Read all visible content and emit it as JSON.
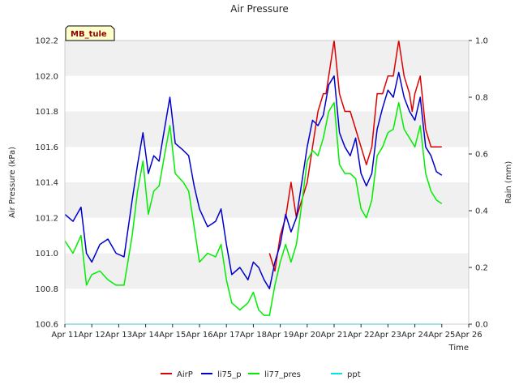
{
  "chart_data": {
    "type": "line",
    "title": "Air Pressure",
    "site_label": "MB_tule",
    "xlabel": "Time",
    "ylabel": "Air Pressure (kPa)",
    "y2label": "Rain (mm)",
    "x_ticks": [
      "Apr 11",
      "Apr 12",
      "Apr 13",
      "Apr 14",
      "Apr 15",
      "Apr 16",
      "Apr 17",
      "Apr 18",
      "Apr 19",
      "Apr 20",
      "Apr 21",
      "Apr 22",
      "Apr 23",
      "Apr 24",
      "Apr 25",
      "Apr 26"
    ],
    "xlim": [
      0,
      15
    ],
    "ylim": [
      100.6,
      102.2
    ],
    "y_ticks": [
      "100.6",
      "100.8",
      "101.0",
      "101.2",
      "101.4",
      "101.6",
      "101.8",
      "102.0",
      "102.2"
    ],
    "y2lim": [
      0.0,
      1.0
    ],
    "y2_ticks": [
      "0.0",
      "0.2",
      "0.4",
      "0.6",
      "0.8",
      "1.0"
    ],
    "grid": "horizontal bands",
    "legend_position": "bottom-center",
    "colors": {
      "AirP": "#dd0000",
      "li75_p": "#0000cc",
      "li77_pres": "#00ee00",
      "ppt": "#00e5e5",
      "band": "#f0f0f0"
    },
    "series": [
      {
        "name": "AirP",
        "axis": "left",
        "x": [
          7.6,
          7.8,
          8.0,
          8.2,
          8.4,
          8.6,
          8.8,
          9.0,
          9.2,
          9.4,
          9.6,
          9.7,
          9.8,
          10.0,
          10.2,
          10.4,
          10.6,
          10.8,
          11.0,
          11.2,
          11.4,
          11.6,
          11.8,
          12.0,
          12.2,
          12.4,
          12.6,
          12.8,
          12.9,
          13.0,
          13.2,
          13.4,
          13.6,
          13.8,
          14.0
        ],
        "y": [
          101.0,
          100.9,
          101.1,
          101.2,
          101.4,
          101.2,
          101.3,
          101.4,
          101.6,
          101.8,
          101.9,
          101.9,
          102.0,
          102.2,
          101.9,
          101.8,
          101.8,
          101.7,
          101.6,
          101.5,
          101.6,
          101.9,
          101.9,
          102.0,
          102.0,
          102.2,
          102.0,
          101.9,
          101.8,
          101.9,
          102.0,
          101.7,
          101.6,
          101.6,
          101.6
        ]
      },
      {
        "name": "li75_p",
        "axis": "left",
        "x": [
          0,
          0.3,
          0.6,
          0.8,
          1.0,
          1.3,
          1.6,
          1.9,
          2.2,
          2.5,
          2.7,
          2.9,
          3.1,
          3.3,
          3.5,
          3.7,
          3.9,
          4.1,
          4.4,
          4.6,
          4.8,
          5.0,
          5.3,
          5.6,
          5.8,
          6.0,
          6.2,
          6.5,
          6.8,
          7.0,
          7.2,
          7.4,
          7.6,
          7.8,
          8.0,
          8.2,
          8.4,
          8.6,
          8.8,
          9.0,
          9.2,
          9.4,
          9.6,
          9.8,
          10.0,
          10.2,
          10.4,
          10.6,
          10.8,
          11.0,
          11.2,
          11.4,
          11.6,
          11.8,
          12.0,
          12.2,
          12.4,
          12.6,
          12.8,
          13.0,
          13.2,
          13.4,
          13.6,
          13.8,
          14.0
        ],
        "y": [
          101.22,
          101.18,
          101.26,
          101.0,
          100.95,
          101.05,
          101.08,
          101.0,
          100.98,
          101.3,
          101.5,
          101.68,
          101.45,
          101.55,
          101.52,
          101.7,
          101.88,
          101.62,
          101.58,
          101.55,
          101.38,
          101.25,
          101.15,
          101.18,
          101.25,
          101.05,
          100.88,
          100.92,
          100.85,
          100.95,
          100.92,
          100.85,
          100.8,
          100.95,
          101.05,
          101.22,
          101.12,
          101.2,
          101.4,
          101.6,
          101.75,
          101.72,
          101.78,
          101.95,
          102.0,
          101.68,
          101.6,
          101.55,
          101.65,
          101.45,
          101.38,
          101.45,
          101.7,
          101.82,
          101.92,
          101.88,
          102.02,
          101.88,
          101.8,
          101.75,
          101.88,
          101.6,
          101.55,
          101.46,
          101.44
        ]
      },
      {
        "name": "li77_pres",
        "axis": "left",
        "x": [
          0,
          0.3,
          0.6,
          0.8,
          1.0,
          1.3,
          1.6,
          1.9,
          2.2,
          2.5,
          2.7,
          2.9,
          3.1,
          3.3,
          3.5,
          3.7,
          3.9,
          4.1,
          4.4,
          4.6,
          4.8,
          5.0,
          5.3,
          5.6,
          5.8,
          6.0,
          6.2,
          6.5,
          6.8,
          7.0,
          7.2,
          7.4,
          7.6,
          7.8,
          8.0,
          8.2,
          8.4,
          8.6,
          8.8,
          9.0,
          9.2,
          9.4,
          9.6,
          9.8,
          10.0,
          10.2,
          10.4,
          10.6,
          10.8,
          11.0,
          11.2,
          11.4,
          11.6,
          11.8,
          12.0,
          12.2,
          12.4,
          12.6,
          12.8,
          13.0,
          13.2,
          13.4,
          13.6,
          13.8,
          14.0
        ],
        "y": [
          101.07,
          101.0,
          101.1,
          100.82,
          100.88,
          100.9,
          100.85,
          100.82,
          100.82,
          101.1,
          101.35,
          101.52,
          101.22,
          101.35,
          101.38,
          101.55,
          101.72,
          101.45,
          101.4,
          101.35,
          101.15,
          100.95,
          101.0,
          100.98,
          101.05,
          100.85,
          100.72,
          100.68,
          100.72,
          100.78,
          100.68,
          100.65,
          100.65,
          100.82,
          100.95,
          101.05,
          100.95,
          101.05,
          101.28,
          101.52,
          101.58,
          101.55,
          101.65,
          101.8,
          101.85,
          101.5,
          101.45,
          101.45,
          101.42,
          101.25,
          101.2,
          101.3,
          101.55,
          101.6,
          101.68,
          101.7,
          101.85,
          101.7,
          101.65,
          101.6,
          101.72,
          101.45,
          101.35,
          101.3,
          101.28
        ]
      },
      {
        "name": "ppt",
        "axis": "right",
        "x": [
          0,
          14.0
        ],
        "y": [
          0.0,
          0.0
        ]
      }
    ]
  }
}
